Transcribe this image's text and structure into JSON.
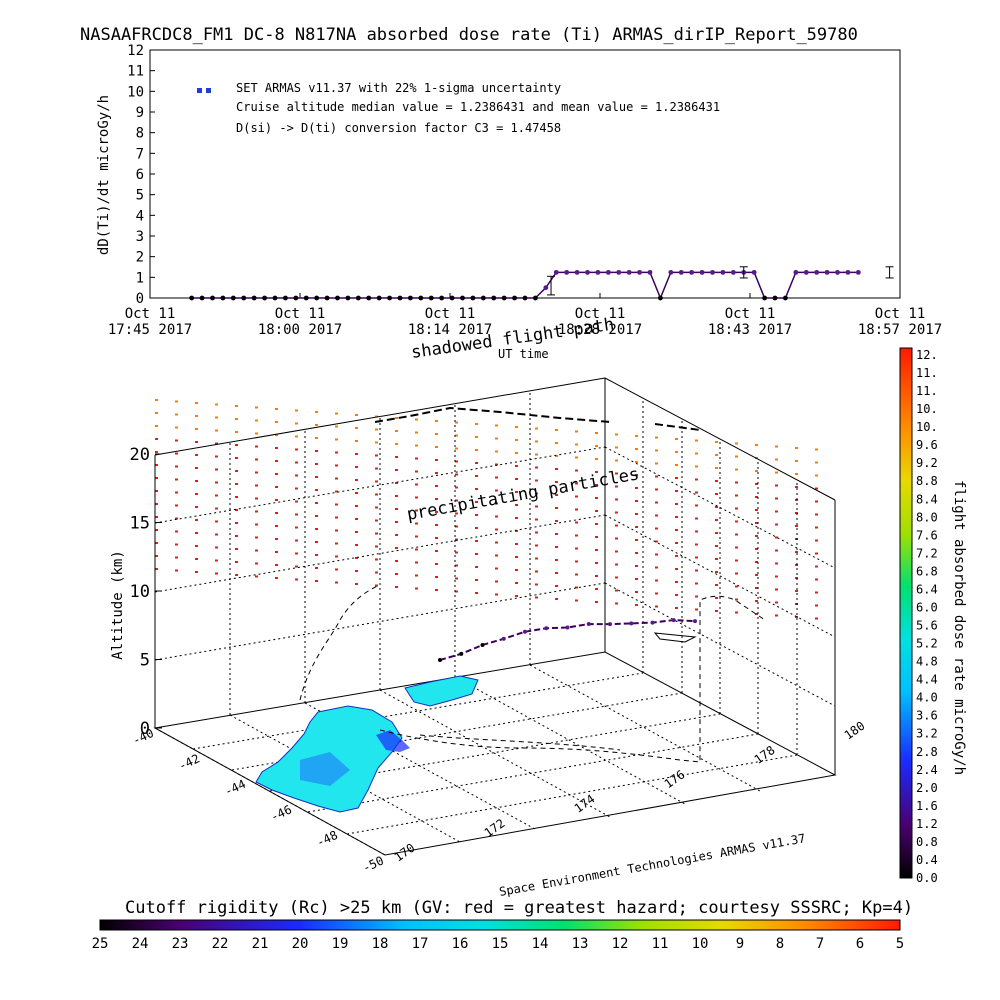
{
  "header": {
    "title": "NASAAFRCDC8_FM1 DC-8   N817NA absorbed dose rate (Ti) ARMAS_dirIP_Report_59780"
  },
  "colors": {
    "series_marker": "#1f3fd0",
    "series_line": "#3a0060",
    "ocean_fill": "#22e6ee",
    "hazard_red": "#e02010",
    "hazard_orange": "#ff7a00"
  },
  "chart_data": [
    {
      "type": "line",
      "ylabel": "dD(Ti)/dt microGy/h",
      "xlabel": "UT time",
      "ylim": [
        0,
        12
      ],
      "y_ticks": [
        "0",
        "1",
        "2",
        "3",
        "4",
        "5",
        "6",
        "7",
        "8",
        "9",
        "10",
        "11",
        "12"
      ],
      "x_tick_labels": [
        {
          "line1": "Oct 11",
          "line2": "17:45 2017"
        },
        {
          "line1": "Oct 11",
          "line2": "18:00 2017"
        },
        {
          "line1": "Oct 11",
          "line2": "18:14 2017"
        },
        {
          "line1": "Oct 11",
          "line2": "18:28 2017"
        },
        {
          "line1": "Oct 11",
          "line2": "18:43 2017"
        },
        {
          "line1": "Oct 11",
          "line2": "18:57 2017"
        }
      ],
      "legend": {
        "series": "SET ARMAS v11.37 with 22% 1-sigma uncertainty",
        "median_line": "Cruise altitude median value = 1.2386431 and mean value = 1.2386431",
        "conversion_line": "D(si) -> D(ti) conversion factor C3 = 1.47458"
      },
      "series": [
        {
          "minutes_after_1745": [
            4,
            5,
            6,
            7,
            8,
            9,
            10,
            11,
            12,
            13,
            14,
            15,
            16,
            17,
            18,
            19,
            20,
            21,
            22,
            23,
            24,
            25,
            26,
            27,
            28,
            29,
            30,
            31,
            32,
            33,
            34,
            35,
            36,
            37,
            38,
            39,
            40,
            41,
            42,
            43,
            44,
            45,
            46,
            47,
            48,
            49,
            50,
            51,
            52,
            53,
            54,
            55,
            56,
            57,
            58,
            59,
            60,
            61,
            62,
            63,
            64,
            65,
            66,
            67,
            68,
            69,
            70,
            71,
            72
          ],
          "values": [
            0,
            0,
            0,
            0,
            0,
            0,
            0,
            0,
            0,
            0,
            0,
            0,
            0,
            0,
            0,
            0,
            0,
            0,
            0,
            0,
            0,
            0,
            0,
            0,
            0,
            0,
            0,
            0,
            0,
            0,
            0,
            0,
            0,
            0,
            0.5,
            1.24,
            1.24,
            1.24,
            1.24,
            1.24,
            1.24,
            1.24,
            1.24,
            1.24,
            1.24,
            0,
            1.24,
            1.24,
            1.24,
            1.24,
            1.24,
            1.24,
            1.24,
            1.24,
            1.24,
            0,
            0,
            0,
            1.24,
            1.24,
            1.24,
            1.24,
            1.24,
            1.24,
            1.24,
            null,
            null,
            null,
            null
          ]
        }
      ]
    },
    {
      "type": "scatter",
      "ylabel": "Altitude (km)",
      "z_ticks": [
        "0",
        "5",
        "10",
        "15",
        "20"
      ],
      "lat_ticks": [
        "-40",
        "-42",
        "-44",
        "-46",
        "-48",
        "-50"
      ],
      "lon_ticks": [
        "170",
        "172",
        "174",
        "176",
        "178",
        "180"
      ],
      "annotations": {
        "shadowed": "shadowed flight path",
        "precipitating": "precipitating particles",
        "credit": "Space Environment Technologies ARMAS v11.37"
      },
      "flight_path_altitude_km": [
        4.5,
        5.0,
        5.8,
        6.3,
        6.9,
        7.1,
        7.0,
        7.2,
        7.0,
        6.9,
        6.8,
        6.9,
        6.6
      ]
    }
  ],
  "dose_colorbar": {
    "label": "flight absorbed dose rate microGy/h",
    "ticks": [
      "12.",
      "11.",
      "11.",
      "10.",
      "10.",
      "9.6",
      "9.2",
      "8.8",
      "8.4",
      "8.0",
      "7.6",
      "7.2",
      "6.8",
      "6.4",
      "6.0",
      "5.6",
      "5.2",
      "4.8",
      "4.4",
      "4.0",
      "3.6",
      "3.2",
      "2.8",
      "2.4",
      "2.0",
      "1.6",
      "1.2",
      "0.8",
      "0.4",
      "0.0"
    ]
  },
  "rigidity_colorbar": {
    "label": "Cutoff rigidity (Rc) >25 km (GV: red = greatest hazard; courtesy SSSRC; Kp=4)",
    "ticks": [
      "25",
      "24",
      "23",
      "22",
      "21",
      "20",
      "19",
      "18",
      "17",
      "16",
      "15",
      "14",
      "13",
      "12",
      "11",
      "10",
      "9",
      "8",
      "7",
      "6",
      "5"
    ]
  }
}
